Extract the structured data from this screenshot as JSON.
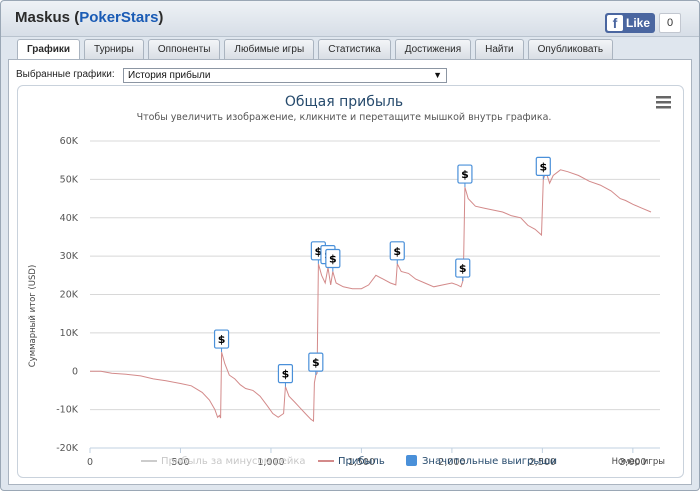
{
  "window": {
    "player": "Maskus",
    "site": "PokerStars"
  },
  "facebook": {
    "like_label": "Like",
    "like_count": "0"
  },
  "tabs": [
    {
      "label": "Графики",
      "active": true
    },
    {
      "label": "Турниры",
      "active": false
    },
    {
      "label": "Оппоненты",
      "active": false
    },
    {
      "label": "Любимые игры",
      "active": false
    },
    {
      "label": "Статистика",
      "active": false
    },
    {
      "label": "Достижения",
      "active": false
    },
    {
      "label": "Найти",
      "active": false
    },
    {
      "label": "Опубликовать",
      "active": false
    }
  ],
  "selector": {
    "label": "Выбранные графики:",
    "value": "История прибыли"
  },
  "colors": {
    "profit_line": "#d38a8a",
    "rake_line": "#cccccc",
    "big_win_marker": "#4a90d9",
    "title": "#274b6d"
  },
  "chart_data": {
    "type": "line",
    "title": "Общая прибыль",
    "subtitle": "Чтобы увеличить изображение, кликните и перетащите мышкой внутрь графика.",
    "ylabel": "Суммарный итог (USD)",
    "xlabel": "Номер игры",
    "xlim": [
      0,
      3150
    ],
    "ylim": [
      -20000,
      60000
    ],
    "x_ticks": [
      0,
      500,
      1000,
      1500,
      2000,
      2500,
      3000
    ],
    "x_tick_labels": [
      "0",
      "500",
      "1,000",
      "1,500",
      "2,000",
      "2,500",
      "3,000"
    ],
    "y_ticks": [
      -20000,
      -10000,
      0,
      10000,
      20000,
      30000,
      40000,
      50000,
      60000
    ],
    "y_tick_labels": [
      "-20K",
      "-10K",
      "0",
      "10K",
      "20K",
      "30K",
      "40K",
      "50K",
      "60K"
    ],
    "grid": true,
    "legend_position": "bottom",
    "legend": [
      {
        "name": "Прибыль за минусом рейка",
        "color": "#cccccc",
        "kind": "line",
        "enabled": false
      },
      {
        "name": "Прибыль",
        "color": "#d38a8a",
        "kind": "line",
        "enabled": true
      },
      {
        "name": "Значительные выигрыши",
        "color": "#4a90d9",
        "kind": "square",
        "enabled": true
      }
    ],
    "series": [
      {
        "name": "Прибыль",
        "points": [
          [
            0,
            0
          ],
          [
            60,
            0
          ],
          [
            120,
            -500
          ],
          [
            200,
            -800
          ],
          [
            280,
            -1200
          ],
          [
            350,
            -2000
          ],
          [
            420,
            -2500
          ],
          [
            500,
            -3200
          ],
          [
            560,
            -3800
          ],
          [
            620,
            -5500
          ],
          [
            660,
            -7500
          ],
          [
            690,
            -10000
          ],
          [
            705,
            -12000
          ],
          [
            715,
            -11500
          ],
          [
            722,
            -12200
          ],
          [
            727,
            5000
          ],
          [
            745,
            2000
          ],
          [
            770,
            -1000
          ],
          [
            800,
            -2000
          ],
          [
            830,
            -3500
          ],
          [
            860,
            -4500
          ],
          [
            900,
            -5000
          ],
          [
            940,
            -6500
          ],
          [
            980,
            -9000
          ],
          [
            1010,
            -11000
          ],
          [
            1040,
            -12000
          ],
          [
            1070,
            -11000
          ],
          [
            1080,
            -4000
          ],
          [
            1100,
            -6500
          ],
          [
            1130,
            -8000
          ],
          [
            1160,
            -9500
          ],
          [
            1190,
            -11000
          ],
          [
            1220,
            -12500
          ],
          [
            1235,
            -13000
          ],
          [
            1240,
            -3000
          ],
          [
            1248,
            -1000
          ],
          [
            1255,
            -500
          ],
          [
            1262,
            28000
          ],
          [
            1280,
            25000
          ],
          [
            1300,
            23000
          ],
          [
            1315,
            27000
          ],
          [
            1330,
            22500
          ],
          [
            1342,
            26000
          ],
          [
            1360,
            23000
          ],
          [
            1400,
            22000
          ],
          [
            1450,
            21500
          ],
          [
            1500,
            21500
          ],
          [
            1540,
            22500
          ],
          [
            1580,
            25000
          ],
          [
            1620,
            24000
          ],
          [
            1660,
            23000
          ],
          [
            1690,
            22500
          ],
          [
            1698,
            28000
          ],
          [
            1720,
            26000
          ],
          [
            1760,
            25500
          ],
          [
            1800,
            24000
          ],
          [
            1850,
            23000
          ],
          [
            1900,
            22000
          ],
          [
            1950,
            22500
          ],
          [
            2000,
            23000
          ],
          [
            2030,
            22500
          ],
          [
            2050,
            22000
          ],
          [
            2060,
            23500
          ],
          [
            2065,
            30000
          ],
          [
            2072,
            48000
          ],
          [
            2090,
            45000
          ],
          [
            2130,
            43000
          ],
          [
            2180,
            42500
          ],
          [
            2230,
            42000
          ],
          [
            2280,
            41500
          ],
          [
            2330,
            40500
          ],
          [
            2380,
            40000
          ],
          [
            2420,
            38000
          ],
          [
            2460,
            37000
          ],
          [
            2495,
            35500
          ],
          [
            2505,
            50000
          ],
          [
            2520,
            52000
          ],
          [
            2540,
            49000
          ],
          [
            2560,
            51000
          ],
          [
            2600,
            52500
          ],
          [
            2640,
            52000
          ],
          [
            2700,
            51000
          ],
          [
            2760,
            49500
          ],
          [
            2820,
            48500
          ],
          [
            2880,
            47000
          ],
          [
            2930,
            45000
          ],
          [
            2960,
            44500
          ],
          [
            3000,
            43500
          ],
          [
            3050,
            42500
          ],
          [
            3100,
            41500
          ]
        ]
      }
    ],
    "big_wins": [
      {
        "x": 727,
        "y": 5000,
        "label": "$"
      },
      {
        "x": 1080,
        "y": -4000,
        "label": "$"
      },
      {
        "x": 1248,
        "y": -1000,
        "label": "$"
      },
      {
        "x": 1262,
        "y": 28000,
        "label": "$"
      },
      {
        "x": 1315,
        "y": 27000,
        "label": "$"
      },
      {
        "x": 1342,
        "y": 26000,
        "label": "$"
      },
      {
        "x": 1698,
        "y": 28000,
        "label": "$"
      },
      {
        "x": 2060,
        "y": 23500,
        "label": "$"
      },
      {
        "x": 2072,
        "y": 48000,
        "label": "$"
      },
      {
        "x": 2505,
        "y": 50000,
        "label": "$"
      }
    ]
  }
}
